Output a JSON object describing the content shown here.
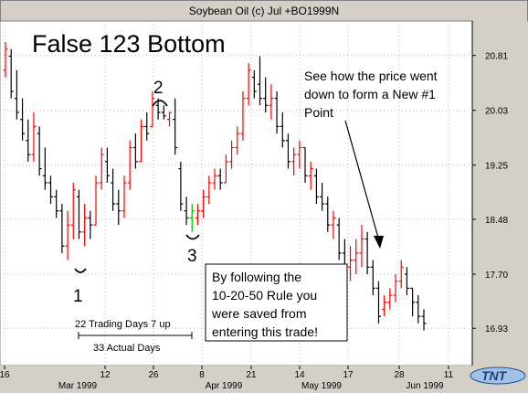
{
  "window": {
    "title": "Soybean Oil (c) Jul +BO1999N"
  },
  "chart_data": {
    "type": "candlestick",
    "title": "False 123 Bottom",
    "ylim": [
      16.4,
      21.3
    ],
    "y_ticks": [
      "20.81",
      "20.03",
      "19.25",
      "18.48",
      "17.70",
      "16.93"
    ],
    "x_tick_labels": [
      "16",
      "12",
      "26",
      "8",
      "21",
      "14",
      "17",
      "28",
      "11"
    ],
    "x_month_labels": [
      "Mar 1999",
      "Apr 1999",
      "May 1999",
      "Jun 1999"
    ],
    "points": [
      {
        "label": "1"
      },
      {
        "label": "2"
      },
      {
        "label": "3"
      }
    ],
    "annotations": {
      "top_right": [
        "See how the price went",
        "down to form a New #1",
        "Point"
      ],
      "box": [
        "By following the",
        "10-20-50 Rule you",
        "were saved from",
        "entering this trade!"
      ],
      "range_top": "22 Trading Days 7 up",
      "range_bottom": "33 Actual Days"
    },
    "bars": [
      {
        "h": 21.0,
        "l": 20.5,
        "o": 20.6,
        "c": 20.9
      },
      {
        "h": 20.9,
        "l": 20.2,
        "o": 20.8,
        "c": 20.3
      },
      {
        "h": 20.6,
        "l": 19.9,
        "o": 20.2,
        "c": 20.0
      },
      {
        "h": 20.2,
        "l": 19.6,
        "o": 19.9,
        "c": 19.7
      },
      {
        "h": 19.9,
        "l": 19.3,
        "o": 19.6,
        "c": 19.4
      },
      {
        "h": 20.0,
        "l": 19.3,
        "o": 19.4,
        "c": 19.8
      },
      {
        "h": 19.8,
        "l": 19.1,
        "o": 19.7,
        "c": 19.2
      },
      {
        "h": 19.5,
        "l": 18.9,
        "o": 19.1,
        "c": 19.0
      },
      {
        "h": 19.1,
        "l": 18.7,
        "o": 19.0,
        "c": 18.8
      },
      {
        "h": 18.9,
        "l": 18.5,
        "o": 18.8,
        "c": 18.6
      },
      {
        "h": 18.7,
        "l": 18.0,
        "o": 18.6,
        "c": 18.1
      },
      {
        "h": 18.6,
        "l": 17.9,
        "o": 18.1,
        "c": 18.4
      },
      {
        "h": 19.0,
        "l": 18.2,
        "o": 18.4,
        "c": 18.9
      },
      {
        "h": 18.9,
        "l": 18.2,
        "o": 18.8,
        "c": 18.3
      },
      {
        "h": 18.7,
        "l": 18.1,
        "o": 18.3,
        "c": 18.5
      },
      {
        "h": 18.6,
        "l": 18.2,
        "o": 18.5,
        "c": 18.4
      },
      {
        "h": 19.1,
        "l": 18.4,
        "o": 18.4,
        "c": 19.0
      },
      {
        "h": 19.5,
        "l": 18.9,
        "o": 19.0,
        "c": 19.4
      },
      {
        "h": 19.5,
        "l": 19.0,
        "o": 19.3,
        "c": 19.1
      },
      {
        "h": 19.2,
        "l": 18.6,
        "o": 19.0,
        "c": 18.7
      },
      {
        "h": 18.9,
        "l": 18.4,
        "o": 18.7,
        "c": 18.6
      },
      {
        "h": 19.1,
        "l": 18.5,
        "o": 18.6,
        "c": 19.0
      },
      {
        "h": 19.6,
        "l": 18.9,
        "o": 19.0,
        "c": 19.5
      },
      {
        "h": 19.7,
        "l": 19.2,
        "o": 19.5,
        "c": 19.3
      },
      {
        "h": 19.9,
        "l": 19.3,
        "o": 19.3,
        "c": 19.8
      },
      {
        "h": 20.0,
        "l": 19.6,
        "o": 19.8,
        "c": 19.7
      },
      {
        "h": 20.3,
        "l": 19.8,
        "o": 19.8,
        "c": 20.2
      },
      {
        "h": 20.2,
        "l": 19.9,
        "o": 20.1,
        "c": 20.0
      },
      {
        "h": 20.1,
        "l": 19.9,
        "o": 20.0,
        "c": 19.95
      },
      {
        "h": 20.0,
        "l": 19.8,
        "o": 19.9,
        "c": 20.0
      },
      {
        "h": 20.2,
        "l": 19.4,
        "o": 19.9,
        "c": 19.5
      },
      {
        "h": 19.3,
        "l": 18.6,
        "o": 19.2,
        "c": 18.7
      },
      {
        "h": 18.8,
        "l": 18.4,
        "o": 18.6,
        "c": 18.5
      },
      {
        "h": 18.7,
        "l": 18.3,
        "o": 18.5,
        "c": 18.6
      },
      {
        "h": 18.7,
        "l": 18.4,
        "o": 18.5,
        "c": 18.6
      },
      {
        "h": 18.9,
        "l": 18.5,
        "o": 18.6,
        "c": 18.8
      },
      {
        "h": 19.1,
        "l": 18.7,
        "o": 18.8,
        "c": 19.0
      },
      {
        "h": 19.2,
        "l": 18.9,
        "o": 19.0,
        "c": 19.1
      },
      {
        "h": 19.2,
        "l": 18.9,
        "o": 19.1,
        "c": 19.0
      },
      {
        "h": 19.4,
        "l": 19.0,
        "o": 19.0,
        "c": 19.3
      },
      {
        "h": 19.6,
        "l": 19.2,
        "o": 19.3,
        "c": 19.5
      },
      {
        "h": 19.8,
        "l": 19.4,
        "o": 19.5,
        "c": 19.7
      },
      {
        "h": 20.3,
        "l": 19.6,
        "o": 19.7,
        "c": 20.2
      },
      {
        "h": 20.7,
        "l": 20.1,
        "o": 20.2,
        "c": 20.6
      },
      {
        "h": 20.6,
        "l": 20.2,
        "o": 20.5,
        "c": 20.3
      },
      {
        "h": 20.8,
        "l": 20.1,
        "o": 20.4,
        "c": 20.2
      },
      {
        "h": 20.5,
        "l": 20.0,
        "o": 20.2,
        "c": 20.1
      },
      {
        "h": 20.4,
        "l": 19.9,
        "o": 20.1,
        "c": 20.2
      },
      {
        "h": 20.3,
        "l": 19.7,
        "o": 20.2,
        "c": 19.8
      },
      {
        "h": 20.0,
        "l": 19.5,
        "o": 19.8,
        "c": 19.6
      },
      {
        "h": 19.7,
        "l": 19.2,
        "o": 19.6,
        "c": 19.3
      },
      {
        "h": 19.5,
        "l": 19.1,
        "o": 19.3,
        "c": 19.4
      },
      {
        "h": 19.6,
        "l": 19.2,
        "o": 19.4,
        "c": 19.5
      },
      {
        "h": 19.5,
        "l": 19.0,
        "o": 19.5,
        "c": 19.1
      },
      {
        "h": 19.3,
        "l": 18.9,
        "o": 19.1,
        "c": 19.2
      },
      {
        "h": 19.2,
        "l": 18.7,
        "o": 19.1,
        "c": 18.8
      },
      {
        "h": 19.0,
        "l": 18.6,
        "o": 18.8,
        "c": 18.7
      },
      {
        "h": 18.8,
        "l": 18.3,
        "o": 18.7,
        "c": 18.4
      },
      {
        "h": 18.6,
        "l": 18.2,
        "o": 18.4,
        "c": 18.5
      },
      {
        "h": 18.5,
        "l": 17.9,
        "o": 18.4,
        "c": 18.0
      },
      {
        "h": 18.2,
        "l": 17.7,
        "o": 18.0,
        "c": 17.8
      },
      {
        "h": 18.1,
        "l": 17.6,
        "o": 17.8,
        "c": 17.9
      },
      {
        "h": 18.2,
        "l": 17.7,
        "o": 17.9,
        "c": 18.0
      },
      {
        "h": 18.4,
        "l": 17.8,
        "o": 18.0,
        "c": 18.2
      },
      {
        "h": 18.3,
        "l": 17.7,
        "o": 18.2,
        "c": 17.8
      },
      {
        "h": 17.9,
        "l": 17.4,
        "o": 17.8,
        "c": 17.5
      },
      {
        "h": 17.6,
        "l": 17.0,
        "o": 17.5,
        "c": 17.1
      },
      {
        "h": 17.4,
        "l": 17.1,
        "o": 17.2,
        "c": 17.3
      },
      {
        "h": 17.5,
        "l": 17.2,
        "o": 17.3,
        "c": 17.4
      },
      {
        "h": 17.7,
        "l": 17.3,
        "o": 17.4,
        "c": 17.6
      },
      {
        "h": 17.9,
        "l": 17.5,
        "o": 17.6,
        "c": 17.8
      },
      {
        "h": 17.8,
        "l": 17.4,
        "o": 17.7,
        "c": 17.5
      },
      {
        "h": 17.5,
        "l": 17.1,
        "o": 17.5,
        "c": 17.3
      },
      {
        "h": 17.4,
        "l": 17.0,
        "o": 17.3,
        "c": 17.1
      },
      {
        "h": 17.2,
        "l": 16.9,
        "o": 17.1,
        "c": 17.0
      }
    ]
  },
  "colors": {
    "background": "#ffffff",
    "frame": "#d4d0c8",
    "grid": "#c0c0c0",
    "up": "#ff0000",
    "down": "#000000",
    "highlight": "#00c000"
  },
  "logo": {
    "text": "TNT"
  }
}
